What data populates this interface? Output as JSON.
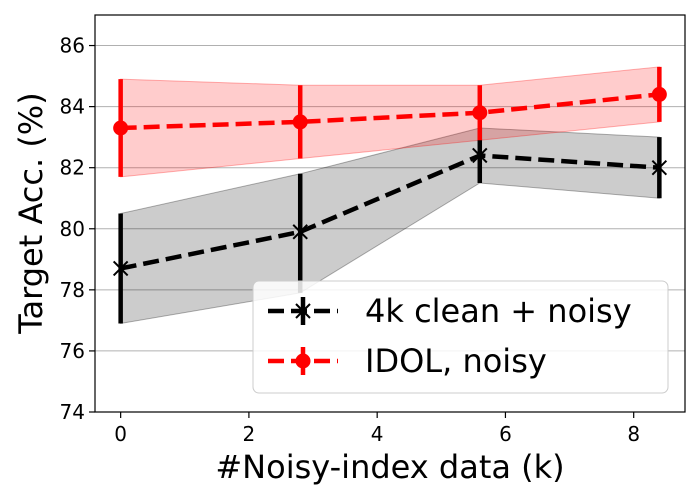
{
  "chart_data": {
    "type": "line",
    "title": "",
    "xlabel": "#Noisy-index data (k)",
    "ylabel": "Target Acc. (%)",
    "xlim": [
      -0.4,
      8.8
    ],
    "ylim": [
      74,
      87
    ],
    "xticks": [
      0,
      2,
      4,
      6,
      8
    ],
    "yticks": [
      74,
      76,
      78,
      80,
      82,
      84,
      86
    ],
    "grid": "horizontal",
    "legend": "lower-right",
    "series": [
      {
        "name": "4k clean + noisy",
        "color": "#000000",
        "marker": "x",
        "x": [
          0,
          2.8,
          5.6,
          8.4
        ],
        "y": [
          78.7,
          79.9,
          82.4,
          82.0
        ],
        "err_low": [
          76.9,
          77.9,
          81.5,
          81.0
        ],
        "err_high": [
          80.5,
          81.8,
          83.3,
          83.0
        ]
      },
      {
        "name": "IDOL, noisy",
        "color": "#ff0000",
        "marker": "o",
        "x": [
          0,
          2.8,
          5.6,
          8.4
        ],
        "y": [
          83.3,
          83.5,
          83.8,
          84.4
        ],
        "err_low": [
          81.7,
          82.3,
          82.9,
          83.5
        ],
        "err_high": [
          84.9,
          84.7,
          84.7,
          85.3
        ]
      }
    ]
  }
}
